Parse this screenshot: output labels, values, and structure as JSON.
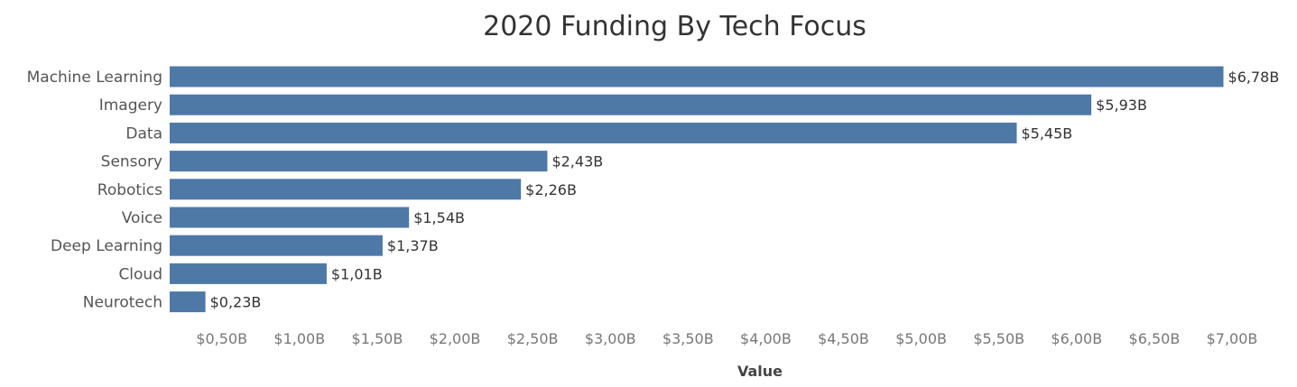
{
  "chart_data": {
    "type": "bar",
    "orientation": "horizontal",
    "title": "2020 Funding By Tech Focus",
    "xlabel": "Value",
    "ylabel": "",
    "categories": [
      "Machine Learning",
      "Imagery",
      "Data",
      "Sensory",
      "Robotics",
      "Voice",
      "Deep Learning",
      "Cloud",
      "Neurotech"
    ],
    "values": [
      6.78,
      5.93,
      5.45,
      2.43,
      2.26,
      1.54,
      1.37,
      1.01,
      0.23
    ],
    "value_labels": [
      "$6,78B",
      "$5,93B",
      "$5,45B",
      "$2,43B",
      "$2,26B",
      "$1,54B",
      "$1,37B",
      "$1,01B",
      "$0,23B"
    ],
    "xlim": [
      0,
      7.0
    ],
    "ticks": [
      0.5,
      1.0,
      1.5,
      2.0,
      2.5,
      3.0,
      3.5,
      4.0,
      4.5,
      5.0,
      5.5,
      6.0,
      6.5,
      7.0
    ],
    "tick_labels": [
      "$0,50B",
      "$1,00B",
      "$1,50B",
      "$2,00B",
      "$2,50B",
      "$3,00B",
      "$3,50B",
      "$4,00B",
      "$4,50B",
      "$5,00B",
      "$5,50B",
      "$6,00B",
      "$6,50B",
      "$7,00B"
    ],
    "grid": false,
    "legend": "none",
    "bar_color": "#4e79a7"
  }
}
